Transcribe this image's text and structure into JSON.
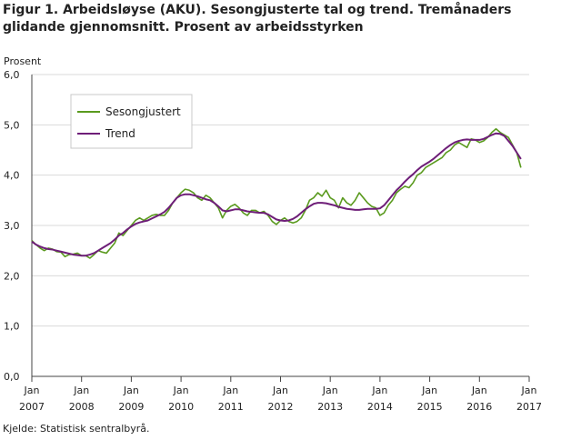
{
  "title": "Figur 1. Arbeidsløyse (AKU). Sesongjusterte tal og trend. Tremånaders glidande gjennomsnitt. Prosent av arbeidsstyrken",
  "source": "Kjelde: Statistisk sentralbyrå.",
  "chart_data": {
    "type": "line",
    "ylabel": "Prosent",
    "ylim": [
      0,
      6
    ],
    "yticks": [
      "0,0",
      "1,0",
      "2,0",
      "3,0",
      "4,0",
      "5,0",
      "6,0"
    ],
    "grid": true,
    "legend": "top-left",
    "x_start": "2007-01",
    "x_end": "2017-01",
    "xticks": [
      {
        "month": "Jan",
        "year": "2007"
      },
      {
        "month": "Jan",
        "year": "2008"
      },
      {
        "month": "Jan",
        "year": "2009"
      },
      {
        "month": "Jan",
        "year": "2010"
      },
      {
        "month": "Jan",
        "year": "2011"
      },
      {
        "month": "Jan",
        "year": "2012"
      },
      {
        "month": "Jan",
        "year": "2013"
      },
      {
        "month": "Jan",
        "year": "2014"
      },
      {
        "month": "Jan",
        "year": "2015"
      },
      {
        "month": "Jan",
        "year": "2016"
      },
      {
        "month": "Jan",
        "year": "2017"
      }
    ],
    "series": [
      {
        "name": "Sesongjustert",
        "color": "#5a9a1e",
        "values": [
          2.7,
          2.62,
          2.55,
          2.5,
          2.55,
          2.53,
          2.48,
          2.47,
          2.38,
          2.42,
          2.43,
          2.45,
          2.4,
          2.4,
          2.35,
          2.42,
          2.5,
          2.47,
          2.45,
          2.55,
          2.65,
          2.85,
          2.8,
          2.9,
          3.0,
          3.1,
          3.15,
          3.1,
          3.15,
          3.2,
          3.22,
          3.2,
          3.2,
          3.3,
          3.45,
          3.55,
          3.65,
          3.72,
          3.7,
          3.65,
          3.55,
          3.5,
          3.6,
          3.55,
          3.45,
          3.35,
          3.15,
          3.3,
          3.38,
          3.42,
          3.35,
          3.25,
          3.2,
          3.3,
          3.3,
          3.25,
          3.28,
          3.2,
          3.08,
          3.02,
          3.1,
          3.15,
          3.08,
          3.05,
          3.08,
          3.15,
          3.3,
          3.5,
          3.55,
          3.65,
          3.58,
          3.7,
          3.55,
          3.5,
          3.35,
          3.55,
          3.45,
          3.4,
          3.5,
          3.65,
          3.55,
          3.45,
          3.38,
          3.35,
          3.2,
          3.25,
          3.4,
          3.5,
          3.65,
          3.72,
          3.78,
          3.75,
          3.85,
          4.0,
          4.05,
          4.15,
          4.2,
          4.25,
          4.3,
          4.35,
          4.45,
          4.5,
          4.6,
          4.65,
          4.6,
          4.55,
          4.72,
          4.7,
          4.65,
          4.68,
          4.75,
          4.85,
          4.92,
          4.85,
          4.8,
          4.75,
          4.6,
          4.45,
          4.15
        ]
      },
      {
        "name": "Trend",
        "color": "#6e1e78",
        "values": [
          2.68,
          2.62,
          2.58,
          2.55,
          2.53,
          2.52,
          2.5,
          2.48,
          2.46,
          2.44,
          2.42,
          2.41,
          2.4,
          2.4,
          2.42,
          2.45,
          2.5,
          2.55,
          2.6,
          2.65,
          2.72,
          2.8,
          2.85,
          2.92,
          2.98,
          3.03,
          3.06,
          3.08,
          3.1,
          3.14,
          3.18,
          3.22,
          3.27,
          3.35,
          3.45,
          3.55,
          3.6,
          3.62,
          3.62,
          3.6,
          3.58,
          3.55,
          3.52,
          3.5,
          3.45,
          3.38,
          3.3,
          3.28,
          3.3,
          3.32,
          3.32,
          3.3,
          3.28,
          3.27,
          3.26,
          3.25,
          3.25,
          3.22,
          3.17,
          3.12,
          3.1,
          3.09,
          3.1,
          3.13,
          3.18,
          3.25,
          3.32,
          3.38,
          3.43,
          3.45,
          3.45,
          3.44,
          3.42,
          3.4,
          3.37,
          3.35,
          3.33,
          3.32,
          3.31,
          3.31,
          3.32,
          3.33,
          3.33,
          3.33,
          3.34,
          3.4,
          3.5,
          3.6,
          3.7,
          3.78,
          3.87,
          3.95,
          4.02,
          4.1,
          4.17,
          4.22,
          4.27,
          4.33,
          4.4,
          4.47,
          4.54,
          4.6,
          4.65,
          4.68,
          4.7,
          4.71,
          4.7,
          4.7,
          4.7,
          4.72,
          4.76,
          4.8,
          4.83,
          4.82,
          4.78,
          4.68,
          4.58,
          4.45,
          4.32
        ]
      }
    ]
  }
}
